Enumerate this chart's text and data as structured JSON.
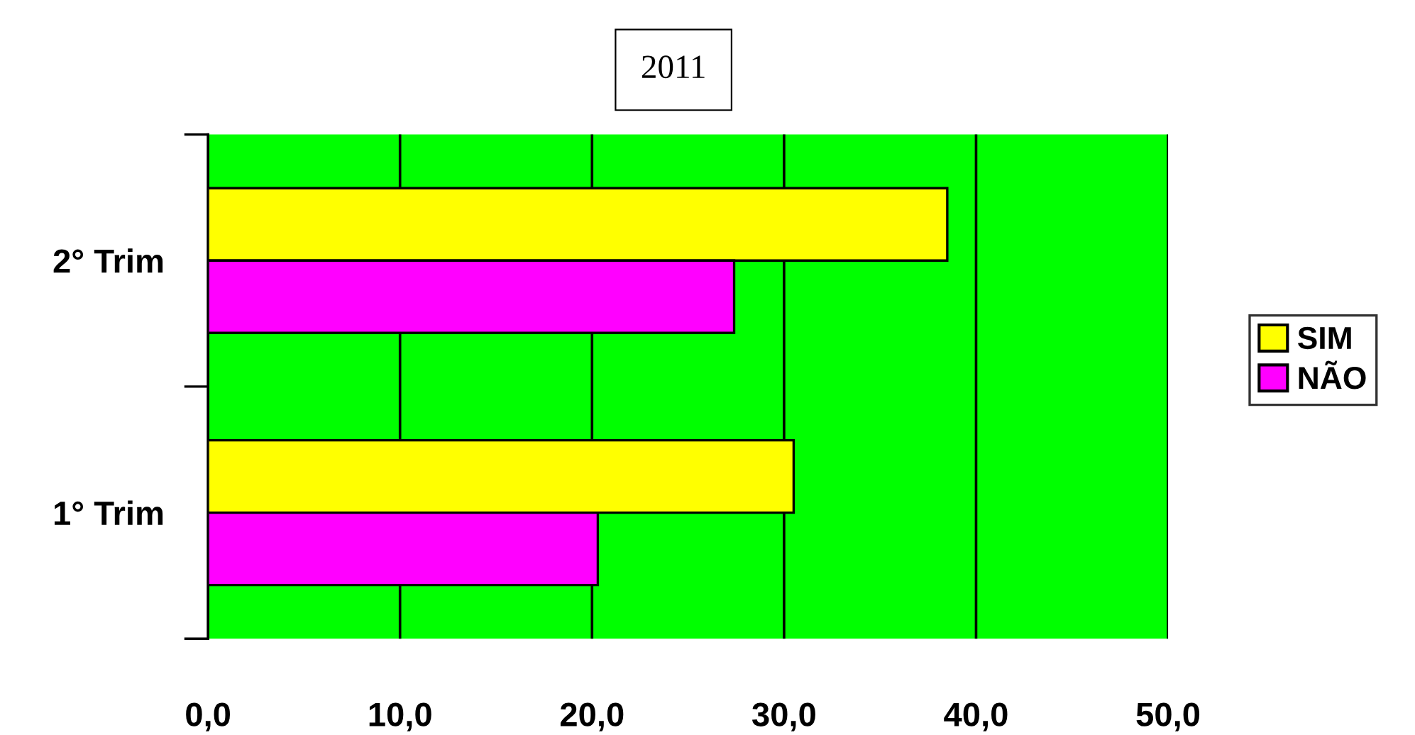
{
  "chart_data": {
    "type": "bar",
    "orientation": "horizontal",
    "title": "2011",
    "categories": [
      "2° Trim",
      "1° Trim"
    ],
    "series": [
      {
        "name": "SIM",
        "color": "#ffff00",
        "values": [
          38.5,
          30.5
        ]
      },
      {
        "name": "NÃO",
        "color": "#ff00ff",
        "values": [
          27.4,
          20.3
        ]
      }
    ],
    "xlim": [
      0,
      50
    ],
    "xticks": [
      {
        "value": 0,
        "label": "0,0"
      },
      {
        "value": 10,
        "label": "10,0"
      },
      {
        "value": 20,
        "label": "20,0"
      },
      {
        "value": 30,
        "label": "30,0"
      },
      {
        "value": 40,
        "label": "40,0"
      },
      {
        "value": 50,
        "label": "50,0"
      }
    ],
    "grid": "x",
    "legend": "right"
  }
}
